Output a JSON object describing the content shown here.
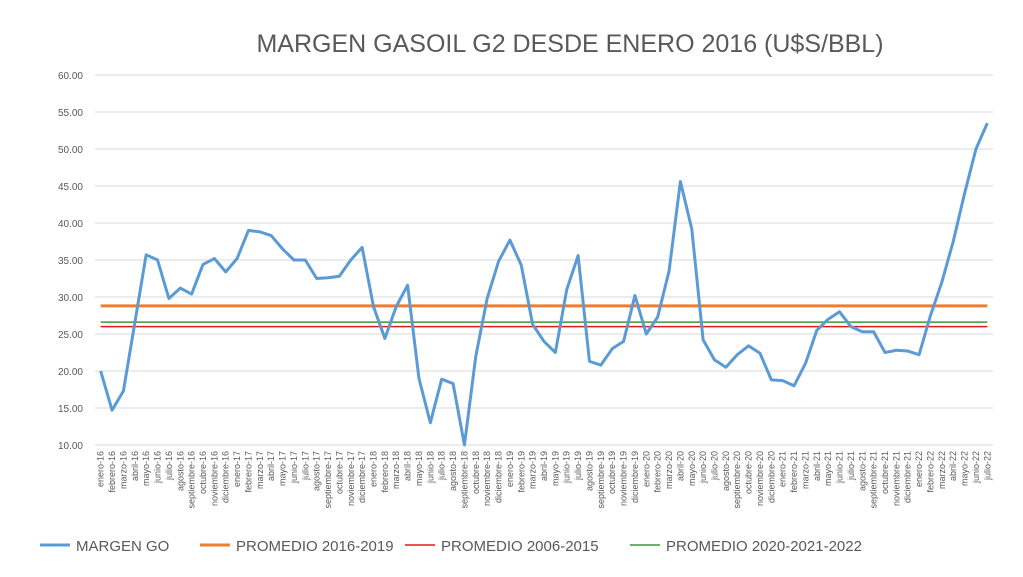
{
  "chart_data": {
    "type": "line",
    "title": "MARGEN GASOIL G2 DESDE ENERO 2016 (U$S/BBL)",
    "categories": [
      "enero-16",
      "febrero-16",
      "marzo-16",
      "abril-16",
      "mayo-16",
      "junio-16",
      "julio-16",
      "agosto-16",
      "septiembre-16",
      "octubre-16",
      "noviembre-16",
      "diciembre-16",
      "enero-17",
      "febrero-17",
      "marzo-17",
      "abril-17",
      "mayo-17",
      "junio-17",
      "julio-17",
      "agosto-17",
      "septiembre-17",
      "octubre-17",
      "noviembre-17",
      "diciembre-17",
      "enero-18",
      "febrero-18",
      "marzo-18",
      "abril-18",
      "mayo-18",
      "junio-18",
      "julio-18",
      "agosto-18",
      "septiembre-18",
      "octubre-18",
      "noviembre-18",
      "diciembre-18",
      "enero-19",
      "febrero-19",
      "marzo-19",
      "abril-19",
      "mayo-19",
      "junio-19",
      "julio-19",
      "agosto-19",
      "septiembre-19",
      "octubre-19",
      "noviembre-19",
      "diciembre-19",
      "enero-20",
      "febrero-20",
      "marzo-20",
      "abril-20",
      "mayo-20",
      "junio-20",
      "julio-20",
      "agosto-20",
      "septiembre-20",
      "octubre-20",
      "noviembre-20",
      "diciembre-20",
      "enero-21",
      "febrero-21",
      "marzo-21",
      "abril-21",
      "mayo-21",
      "junio-21",
      "julio-21",
      "agosto-21",
      "septiembre-21",
      "octubre-21",
      "noviembre-21",
      "diciembre-21",
      "enero-22",
      "febrero-22",
      "marzo-22",
      "abril-22",
      "mayo-22",
      "junio-22",
      "julio-22"
    ],
    "series": [
      {
        "name": "MARGEN GO",
        "color": "#5b9bd5",
        "values": [
          20.0,
          14.7,
          17.3,
          26.5,
          35.7,
          35.0,
          29.8,
          31.2,
          30.4,
          34.4,
          35.2,
          33.4,
          35.2,
          39.0,
          38.8,
          38.3,
          36.5,
          35.0,
          35.0,
          32.5,
          32.6,
          32.8,
          35.0,
          36.7,
          28.7,
          24.4,
          28.7,
          31.6,
          19.0,
          13.0,
          18.9,
          18.3,
          10.0,
          22.0,
          29.8,
          34.8,
          37.7,
          34.3,
          26.3,
          24.0,
          22.5,
          31.0,
          35.6,
          21.3,
          20.8,
          23.0,
          24.0,
          30.2,
          25.0,
          27.3,
          33.5,
          45.6,
          39.2,
          24.2,
          21.5,
          20.5,
          22.2,
          23.4,
          22.4,
          18.8,
          18.7,
          18.0,
          21.0,
          25.5,
          27.0,
          28.0,
          26.0,
          25.3,
          25.3,
          22.5,
          22.8,
          22.7,
          22.2,
          27.5,
          32.0,
          37.5,
          44.0,
          50.0,
          53.5
        ]
      }
    ],
    "reference_lines": [
      {
        "name": "PROMEDIO 2016-2019",
        "color": "#ed7d31",
        "value": 28.8
      },
      {
        "name": "PROMEDIO 2006-2015",
        "color": "#e31a1c",
        "value": 26.0
      },
      {
        "name": "PROMEDIO 2020-2021-2022",
        "color": "#3a9a3a",
        "value": 26.6
      }
    ],
    "ylim": [
      10,
      60
    ],
    "yticks": [
      {
        "value": 10,
        "label": "10.00"
      },
      {
        "value": 15,
        "label": "15.00"
      },
      {
        "value": 20,
        "label": "20.00"
      },
      {
        "value": 25,
        "label": "25.00"
      },
      {
        "value": 30,
        "label": "30.00"
      },
      {
        "value": 35,
        "label": "35.00"
      },
      {
        "value": 40,
        "label": "40.00"
      },
      {
        "value": 45,
        "label": "45.00"
      },
      {
        "value": 50,
        "label": "50.00"
      },
      {
        "value": 55,
        "label": "55.00"
      },
      {
        "value": 60,
        "label": "60.00"
      }
    ],
    "grid": true,
    "legend": "bottom"
  }
}
